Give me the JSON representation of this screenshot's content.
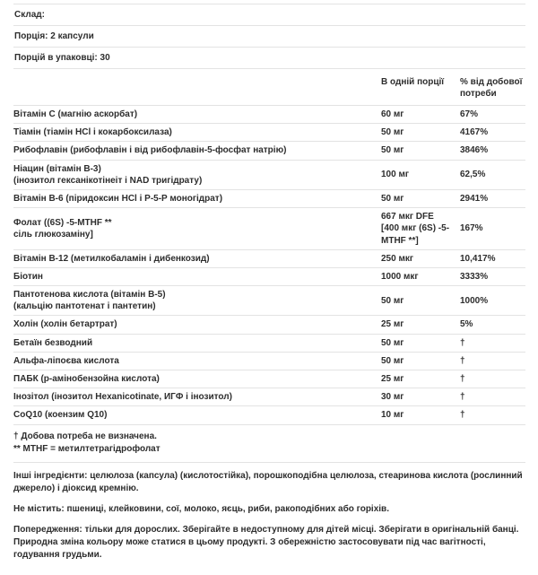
{
  "colors": {
    "background": "#ffffff",
    "text": "#2d2d2d",
    "divider": "#e3e3e3"
  },
  "info_rows": [
    "Склад:",
    "Порція: 2 капсули",
    "Порцій в упаковці: 30"
  ],
  "table": {
    "header": {
      "amount": "В одній порції",
      "daily_value": "% від добової\nпотреби"
    },
    "rows": [
      {
        "name": "Вітамін C (магнію аскорбат)",
        "amount": "60 мг",
        "dv": "67%"
      },
      {
        "name": "Тіамін (тіамін HCl і кокарбоксилаза)",
        "amount": "50 мг",
        "dv": "4167%"
      },
      {
        "name": "Рибофлавін (рибофлавін і від рибофлавін-5-фосфат натрію)",
        "amount": "50 мг",
        "dv": "3846%"
      },
      {
        "name": "Ніацин (вітамін B-3)\n(інозитол гексанікотінеіт і NAD тригідрату)",
        "amount": "100 мг",
        "dv": "62,5%"
      },
      {
        "name": "Вітамін B-6 (піридоксин HCl і P-5-P моногідрат)",
        "amount": "50 мг",
        "dv": "2941%"
      },
      {
        "name": "Фолат ((6S) -5-MTHF **\nсіль глюкозаміну]",
        "amount": "667 мкг DFE\n[400 мкг (6S) -5-\nMTHF **]",
        "dv": "167%"
      },
      {
        "name": "Вітамін B-12 (метилкобаламін і дибенкозид)",
        "amount": "250 мкг",
        "dv": "10,417%"
      },
      {
        "name": "Біотин",
        "amount": "1000 мкг",
        "dv": "3333%"
      },
      {
        "name": "Пантотенова кислота (вітамін B-5)\n(кальцію пантотенат і пантетин)",
        "amount": "50 мг",
        "dv": "1000%"
      },
      {
        "name": "Холін (холін бетартрат)",
        "amount": "25 мг",
        "dv": "5%"
      },
      {
        "name": "Бетаїн безводний",
        "amount": "50 мг",
        "dv": "†"
      },
      {
        "name": "Альфа-ліпоєва кислота",
        "amount": "50 мг",
        "dv": "†"
      },
      {
        "name": "ПАБК (p-амінобензойна кислота)",
        "amount": "25 мг",
        "dv": "†"
      },
      {
        "name": "Інозітол (інозитол Hexanicotinate, ИГФ і інозитол)",
        "amount": "30 мг",
        "dv": "†"
      },
      {
        "name": "CoQ10 (коензим Q10)",
        "amount": "10 мг",
        "dv": "†"
      }
    ]
  },
  "footnotes": [
    "† Добова потреба не визначена.",
    "** MTHF = метилтетрагідрофолат"
  ],
  "paragraphs": [
    "Інші інгредієнти: целюлоза (капсула) (кислотостійка), порошкоподібна целюлоза, стеаринова кислота (рослинний джерело) і діоксид кремнію.",
    "Не містить: пшениці, клейковини, сої, молоко, яєць, риби, ракоподібних або горіхів.",
    "Попередження: тільки для дорослих. Зберігайте в недоступному для дітей місці.  Зберігати в оригінальній банці.  Природна зміна кольору може статися в цьому продукті. З обережністю застосовувати під час вагітності, годування грудьми."
  ]
}
